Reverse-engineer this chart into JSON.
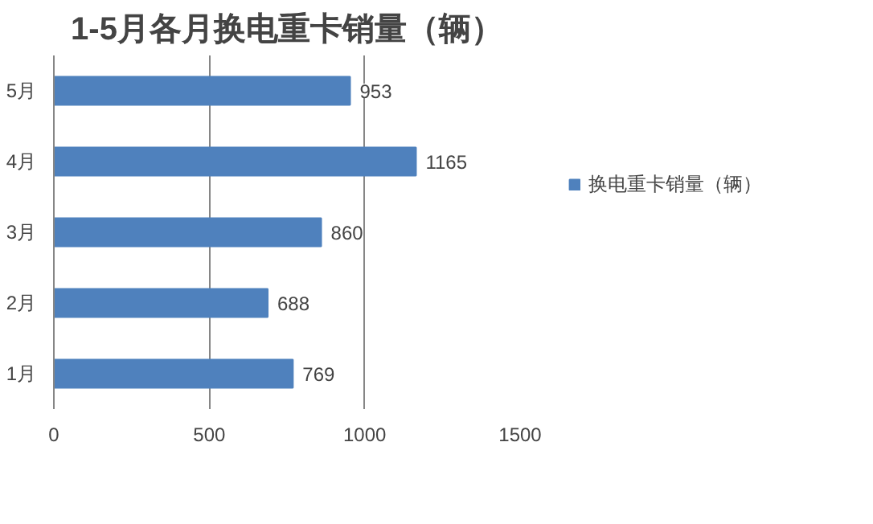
{
  "chart_data": {
    "type": "bar",
    "orientation": "horizontal",
    "title": "1-5月各月换电重卡销量（辆）",
    "categories": [
      "5月",
      "4月",
      "3月",
      "2月",
      "1月"
    ],
    "series": [
      {
        "name": "换电重卡销量（辆）",
        "color": "#4f81bd",
        "values": [
          953,
          1165,
          860,
          688,
          769
        ]
      }
    ],
    "xlim": [
      0,
      1500
    ],
    "xticks": [
      0,
      500,
      1000,
      1500
    ],
    "grid": "x",
    "legend": "right",
    "data_labels": true
  }
}
